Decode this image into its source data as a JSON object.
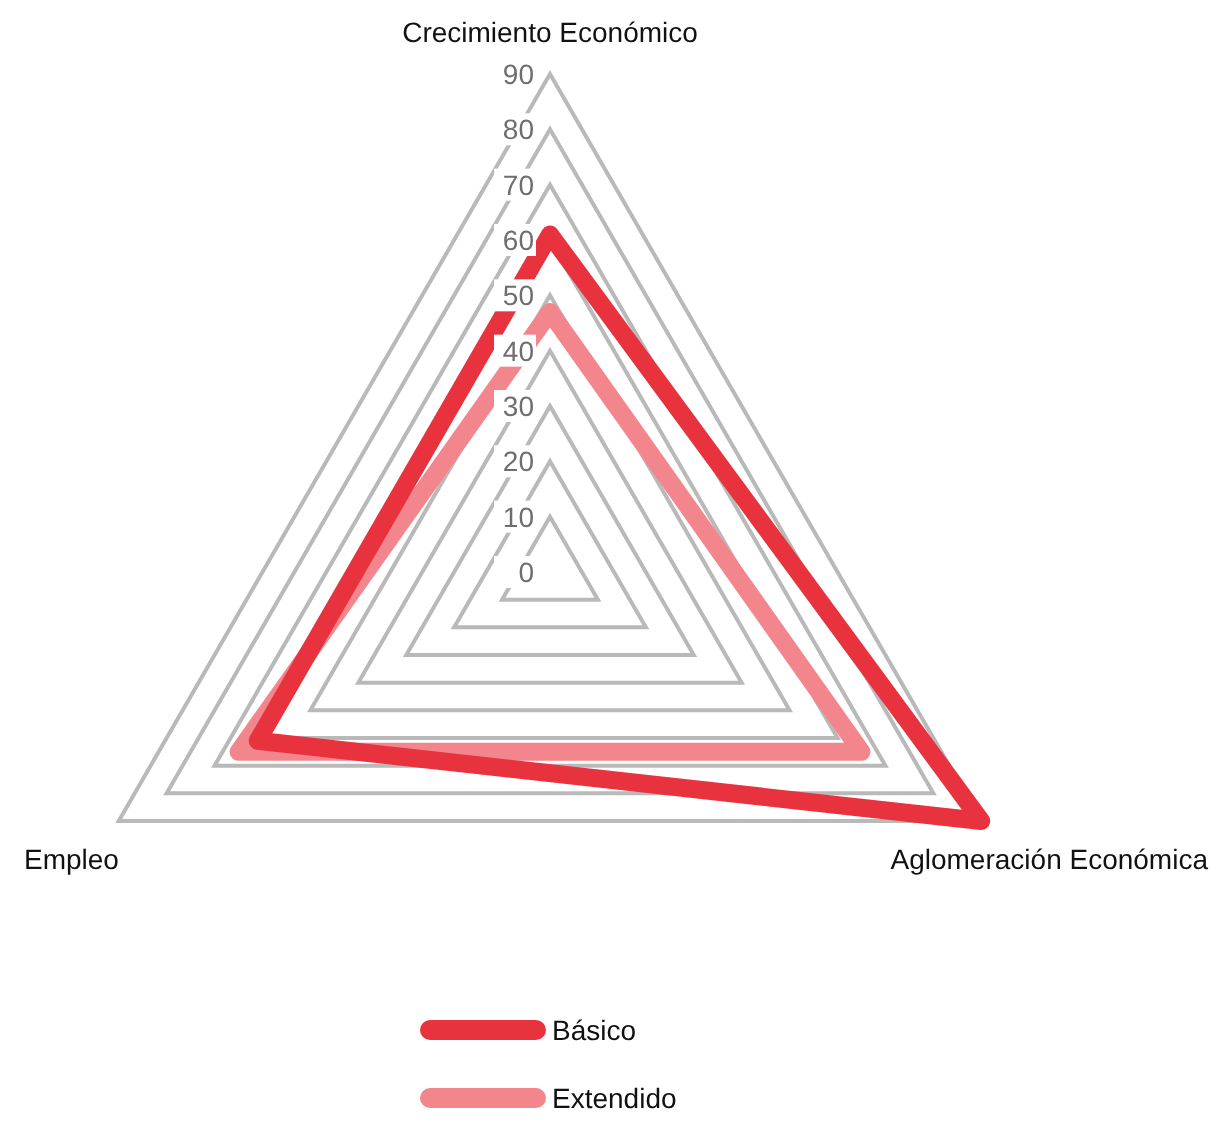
{
  "chart_data": {
    "type": "radar",
    "categories": [
      "Crecimiento Económico",
      "Aglomeración Económica",
      "Empleo"
    ],
    "series": [
      {
        "name": "Básico",
        "color": "#e8333f",
        "values": [
          61,
          90,
          61
        ]
      },
      {
        "name": "Extendido",
        "color": "#f3868c",
        "values": [
          47,
          65,
          65
        ]
      }
    ],
    "ylim": [
      0,
      90
    ],
    "yticks": [
      0,
      10,
      20,
      30,
      40,
      50,
      60,
      70,
      80,
      90
    ],
    "legend": "bottom"
  }
}
